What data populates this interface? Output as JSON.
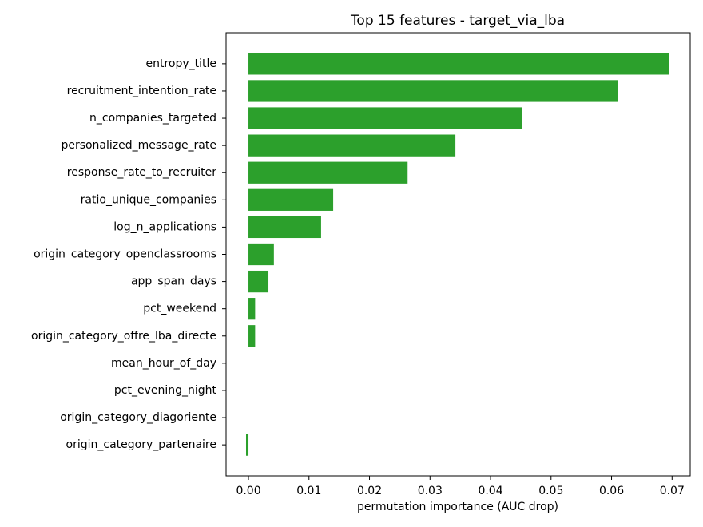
{
  "chart_data": {
    "type": "barh",
    "title": "Top 15 features - target_via_lba",
    "xlabel": "permutation importance (AUC drop)",
    "categories": [
      "entropy_title",
      "recruitment_intention_rate",
      "n_companies_targeted",
      "personalized_message_rate",
      "response_rate_to_recruiter",
      "ratio_unique_companies",
      "log_n_applications",
      "origin_category_openclassrooms",
      "app_span_days",
      "pct_weekend",
      "origin_category_offre_lba_directe",
      "mean_hour_of_day",
      "pct_evening_night",
      "origin_category_diagoriente",
      "origin_category_partenaire"
    ],
    "values": [
      0.0695,
      0.061,
      0.0452,
      0.0342,
      0.0263,
      0.014,
      0.012,
      0.0042,
      0.0033,
      0.0011,
      0.0011,
      0,
      0,
      0,
      -0.0004
    ],
    "color": "#2ca02c",
    "xlim": [
      -0.0037,
      0.073
    ],
    "xticks": [
      {
        "value": 0,
        "label": "0.00"
      },
      0.01,
      0.02,
      0.03,
      0.04,
      0.05,
      0.06,
      0.07
    ]
  }
}
